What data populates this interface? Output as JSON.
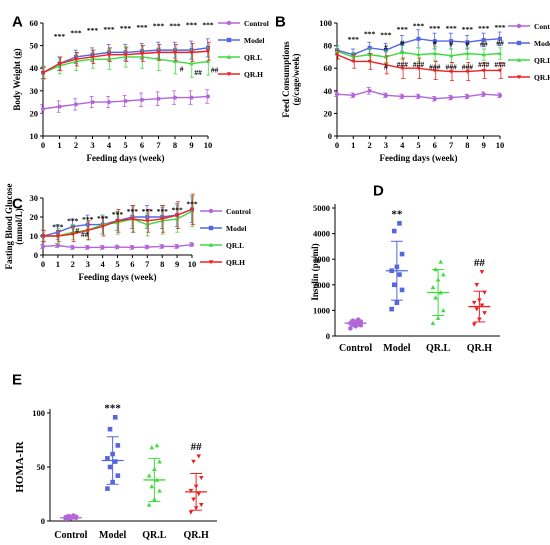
{
  "colors": {
    "Control": "#b266d9",
    "Model": "#5566e0",
    "QR.L": "#3ddc3d",
    "QR.H": "#ee2222"
  },
  "line_panels": [
    {
      "id": "A",
      "type": "line",
      "panel_label": "A",
      "xlabel": "Feeding days (week)",
      "ylabel": "Body Weight (g)",
      "ylim": [
        10,
        60
      ],
      "yticks": [
        10,
        20,
        30,
        40,
        50,
        60
      ],
      "xlim": [
        0,
        10
      ],
      "x": [
        0,
        1,
        2,
        3,
        4,
        5,
        6,
        7,
        8,
        9,
        10
      ],
      "legend_position": "right",
      "series": [
        {
          "name": "Control",
          "values": [
            22,
            23,
            24,
            25,
            25,
            25.5,
            26,
            26.5,
            27,
            27,
            27.5
          ],
          "errors": [
            2,
            2.5,
            2.5,
            2.5,
            2.5,
            2.5,
            3,
            3,
            3,
            3,
            3
          ]
        },
        {
          "name": "Model",
          "values": [
            38,
            42,
            45,
            46,
            47,
            47,
            47.5,
            48,
            48,
            48,
            49
          ],
          "errors": [
            2.5,
            3,
            3,
            3,
            3.5,
            3.5,
            3.5,
            3.5,
            3.5,
            4,
            4
          ]
        },
        {
          "name": "QR.L",
          "values": [
            38,
            41,
            43,
            44,
            44,
            45,
            45,
            44,
            43,
            42,
            43
          ],
          "errors": [
            3,
            3.5,
            4,
            4,
            4.5,
            4.5,
            5,
            5,
            5.5,
            6,
            6
          ]
        },
        {
          "name": "QR.H",
          "values": [
            38,
            42,
            44,
            45,
            46,
            46,
            46.5,
            47,
            47,
            47,
            47.5
          ],
          "errors": [
            2.5,
            3,
            3,
            3,
            3,
            3,
            3.5,
            3.5,
            3.5,
            4,
            4
          ]
        }
      ],
      "annotations": [
        {
          "x": 1,
          "y": 53,
          "text": "***"
        },
        {
          "x": 2,
          "y": 54.5,
          "text": "***"
        },
        {
          "x": 3,
          "y": 55.5,
          "text": "***"
        },
        {
          "x": 4,
          "y": 56,
          "text": "***"
        },
        {
          "x": 5,
          "y": 56.5,
          "text": "***"
        },
        {
          "x": 6,
          "y": 57,
          "text": "***"
        },
        {
          "x": 7,
          "y": 57.5,
          "text": "***"
        },
        {
          "x": 8,
          "y": 57.5,
          "text": "***"
        },
        {
          "x": 9,
          "y": 58,
          "text": "***"
        },
        {
          "x": 10,
          "y": 58,
          "text": "***"
        },
        {
          "x": 8.4,
          "y": 38.5,
          "text": "#"
        },
        {
          "x": 9.4,
          "y": 37,
          "text": "##"
        },
        {
          "x": 10.4,
          "y": 38,
          "text": "##"
        }
      ]
    },
    {
      "id": "B",
      "type": "line",
      "panel_label": "B",
      "xlabel": "Feeding days (week)",
      "ylabel": "Feed Consumptions\n(g/cage/week)",
      "ylim": [
        0,
        100
      ],
      "yticks": [
        0,
        20,
        40,
        60,
        80,
        100
      ],
      "xlim": [
        0,
        10
      ],
      "x": [
        0,
        1,
        2,
        3,
        4,
        5,
        6,
        7,
        8,
        9,
        10
      ],
      "legend_position": "right",
      "series": [
        {
          "name": "Control",
          "values": [
            37,
            36,
            40,
            36,
            35,
            35,
            33,
            34,
            35,
            37,
            36
          ],
          "errors": [
            2,
            2,
            3,
            2,
            2,
            2,
            2,
            2,
            2,
            2,
            2
          ]
        },
        {
          "name": "Model",
          "values": [
            76,
            72,
            78,
            76,
            82,
            86,
            84,
            84,
            83,
            85,
            86
          ],
          "errors": [
            4,
            5,
            5,
            6,
            7,
            8,
            7,
            7,
            6,
            6,
            6
          ]
        },
        {
          "name": "QR.L",
          "values": [
            75,
            70,
            72,
            70,
            74,
            72,
            73,
            71,
            73,
            72,
            73
          ],
          "errors": [
            4,
            4,
            5,
            5,
            6,
            6,
            6,
            6,
            5,
            5,
            5
          ]
        },
        {
          "name": "QR.H",
          "values": [
            72,
            66,
            66,
            63,
            60,
            60,
            58,
            57,
            57,
            58,
            58
          ],
          "errors": [
            4,
            6,
            7,
            8,
            9,
            9,
            8,
            8,
            8,
            7,
            7
          ]
        }
      ],
      "annotations": [
        {
          "x": 1,
          "y": 83,
          "text": "***"
        },
        {
          "x": 2,
          "y": 88,
          "text": "***"
        },
        {
          "x": 3,
          "y": 87,
          "text": "***"
        },
        {
          "x": 4,
          "y": 92,
          "text": "***"
        },
        {
          "x": 5,
          "y": 95,
          "text": "***"
        },
        {
          "x": 6,
          "y": 93,
          "text": "***"
        },
        {
          "x": 7,
          "y": 93,
          "text": "***"
        },
        {
          "x": 8,
          "y": 92,
          "text": "***"
        },
        {
          "x": 9,
          "y": 93,
          "text": "***"
        },
        {
          "x": 10,
          "y": 94,
          "text": "***"
        },
        {
          "x": 3,
          "y": 76,
          "text": "#"
        },
        {
          "x": 4,
          "y": 80,
          "text": "#"
        },
        {
          "x": 6,
          "y": 80,
          "text": "#"
        },
        {
          "x": 7,
          "y": 79,
          "text": "#"
        },
        {
          "x": 8,
          "y": 79,
          "text": "#"
        },
        {
          "x": 9,
          "y": 79,
          "text": "##"
        },
        {
          "x": 10,
          "y": 80,
          "text": "##"
        },
        {
          "x": 3,
          "y": 59,
          "text": "#"
        },
        {
          "x": 4,
          "y": 61,
          "text": "###"
        },
        {
          "x": 5,
          "y": 61,
          "text": "###"
        },
        {
          "x": 6,
          "y": 59,
          "text": "###"
        },
        {
          "x": 7,
          "y": 59,
          "text": "###"
        },
        {
          "x": 8,
          "y": 59,
          "text": "###"
        },
        {
          "x": 9,
          "y": 61,
          "text": "###"
        },
        {
          "x": 10,
          "y": 61,
          "text": "###"
        }
      ]
    },
    {
      "id": "C",
      "type": "line",
      "panel_label": "C",
      "xlabel": "Feeding days (week)",
      "ylabel": "Fasting Blood Glucose\n(mmol/L)",
      "ylim": [
        0,
        30
      ],
      "yticks": [
        0,
        10,
        20,
        30
      ],
      "xlim": [
        0,
        10
      ],
      "x": [
        0,
        1,
        2,
        3,
        4,
        5,
        6,
        7,
        8,
        9,
        10
      ],
      "legend_position": "right",
      "series": [
        {
          "name": "Control",
          "values": [
            4.5,
            5,
            4,
            4,
            4,
            4.2,
            4,
            4.2,
            4.5,
            4.5,
            5.5
          ],
          "errors": [
            1,
            1,
            1,
            1,
            1,
            1,
            1,
            1,
            1,
            1,
            1
          ]
        },
        {
          "name": "Model",
          "values": [
            10,
            12,
            15,
            16,
            16,
            18,
            20,
            20,
            20,
            21,
            24
          ],
          "errors": [
            3,
            4,
            4,
            5,
            5,
            5,
            6,
            6,
            6,
            6,
            7
          ]
        },
        {
          "name": "QR.L",
          "values": [
            10,
            10,
            12,
            13,
            16,
            17,
            19,
            16,
            18,
            19,
            23
          ],
          "errors": [
            3,
            4,
            4,
            5,
            5,
            6,
            7,
            6,
            7,
            7,
            8
          ]
        },
        {
          "name": "QR.H",
          "values": [
            10,
            10,
            11,
            13,
            15,
            18,
            19,
            18,
            19,
            21,
            24
          ],
          "errors": [
            3,
            3,
            4,
            5,
            5,
            6,
            7,
            6,
            7,
            7,
            8
          ]
        }
      ],
      "annotations": [
        {
          "x": 1,
          "y": 13.5,
          "text": "***"
        },
        {
          "x": 2,
          "y": 16.5,
          "text": "***"
        },
        {
          "x": 3,
          "y": 17.5,
          "text": "***"
        },
        {
          "x": 4,
          "y": 18,
          "text": "***"
        },
        {
          "x": 5,
          "y": 20,
          "text": "***"
        },
        {
          "x": 6,
          "y": 21.5,
          "text": "***"
        },
        {
          "x": 7,
          "y": 21.5,
          "text": "***"
        },
        {
          "x": 8,
          "y": 21.5,
          "text": "***"
        },
        {
          "x": 9,
          "y": 22.5,
          "text": "***"
        },
        {
          "x": 10,
          "y": 25.5,
          "text": "***"
        },
        {
          "x": 2.3,
          "y": 11.5,
          "text": "#"
        },
        {
          "x": 2.8,
          "y": 9.5,
          "text": "##"
        }
      ]
    }
  ],
  "scatter_panels": [
    {
      "id": "D",
      "type": "scatter",
      "panel_label": "D",
      "ylabel": "Insulin (pg/ml)",
      "ylim": [
        0,
        5000
      ],
      "yticks": [
        0,
        1000,
        2000,
        3000,
        4000,
        5000
      ],
      "categories": [
        "Control",
        "Model",
        "QR.L",
        "QR.H"
      ],
      "groups": [
        {
          "name": "Control",
          "points": [
            300,
            380,
            420,
            450,
            480,
            500,
            520,
            560,
            600,
            640
          ],
          "mean": 500,
          "sd": 120,
          "sig": ""
        },
        {
          "name": "Model",
          "points": [
            1050,
            1300,
            1800,
            2000,
            2400,
            2550,
            2700,
            3200,
            4100,
            4400
          ],
          "mean": 2550,
          "sd": 1150,
          "sig": "**"
        },
        {
          "name": "QR.L",
          "points": [
            500,
            700,
            1000,
            1500,
            1700,
            1900,
            2200,
            2400,
            2600,
            2900
          ],
          "mean": 1700,
          "sd": 900,
          "sig": ""
        },
        {
          "name": "QR.H",
          "points": [
            450,
            650,
            900,
            1050,
            1200,
            1300,
            1400,
            1700,
            2000,
            2500
          ],
          "mean": 1150,
          "sd": 600,
          "sig": "##"
        }
      ]
    },
    {
      "id": "E",
      "type": "scatter",
      "panel_label": "E",
      "ylabel": "HOMA-IR",
      "ylim": [
        0,
        100
      ],
      "yticks": [
        0,
        50,
        100
      ],
      "categories": [
        "Control",
        "Model",
        "QR.L",
        "QR.H"
      ],
      "groups": [
        {
          "name": "Control",
          "points": [
            2,
            2.5,
            3,
            3,
            3.5,
            3.5,
            4,
            4,
            4.5,
            5
          ],
          "mean": 3,
          "sd": 1,
          "sig": ""
        },
        {
          "name": "Model",
          "points": [
            30,
            36,
            42,
            50,
            55,
            58,
            62,
            70,
            85,
            96
          ],
          "mean": 56,
          "sd": 22,
          "sig": "***"
        },
        {
          "name": "QR.L",
          "points": [
            15,
            20,
            28,
            32,
            38,
            42,
            48,
            55,
            68,
            70
          ],
          "mean": 38,
          "sd": 20,
          "sig": ""
        },
        {
          "name": "QR.H",
          "points": [
            8,
            12,
            15,
            20,
            25,
            28,
            32,
            40,
            55,
            60
          ],
          "mean": 27,
          "sd": 17,
          "sig": "##"
        }
      ]
    }
  ]
}
